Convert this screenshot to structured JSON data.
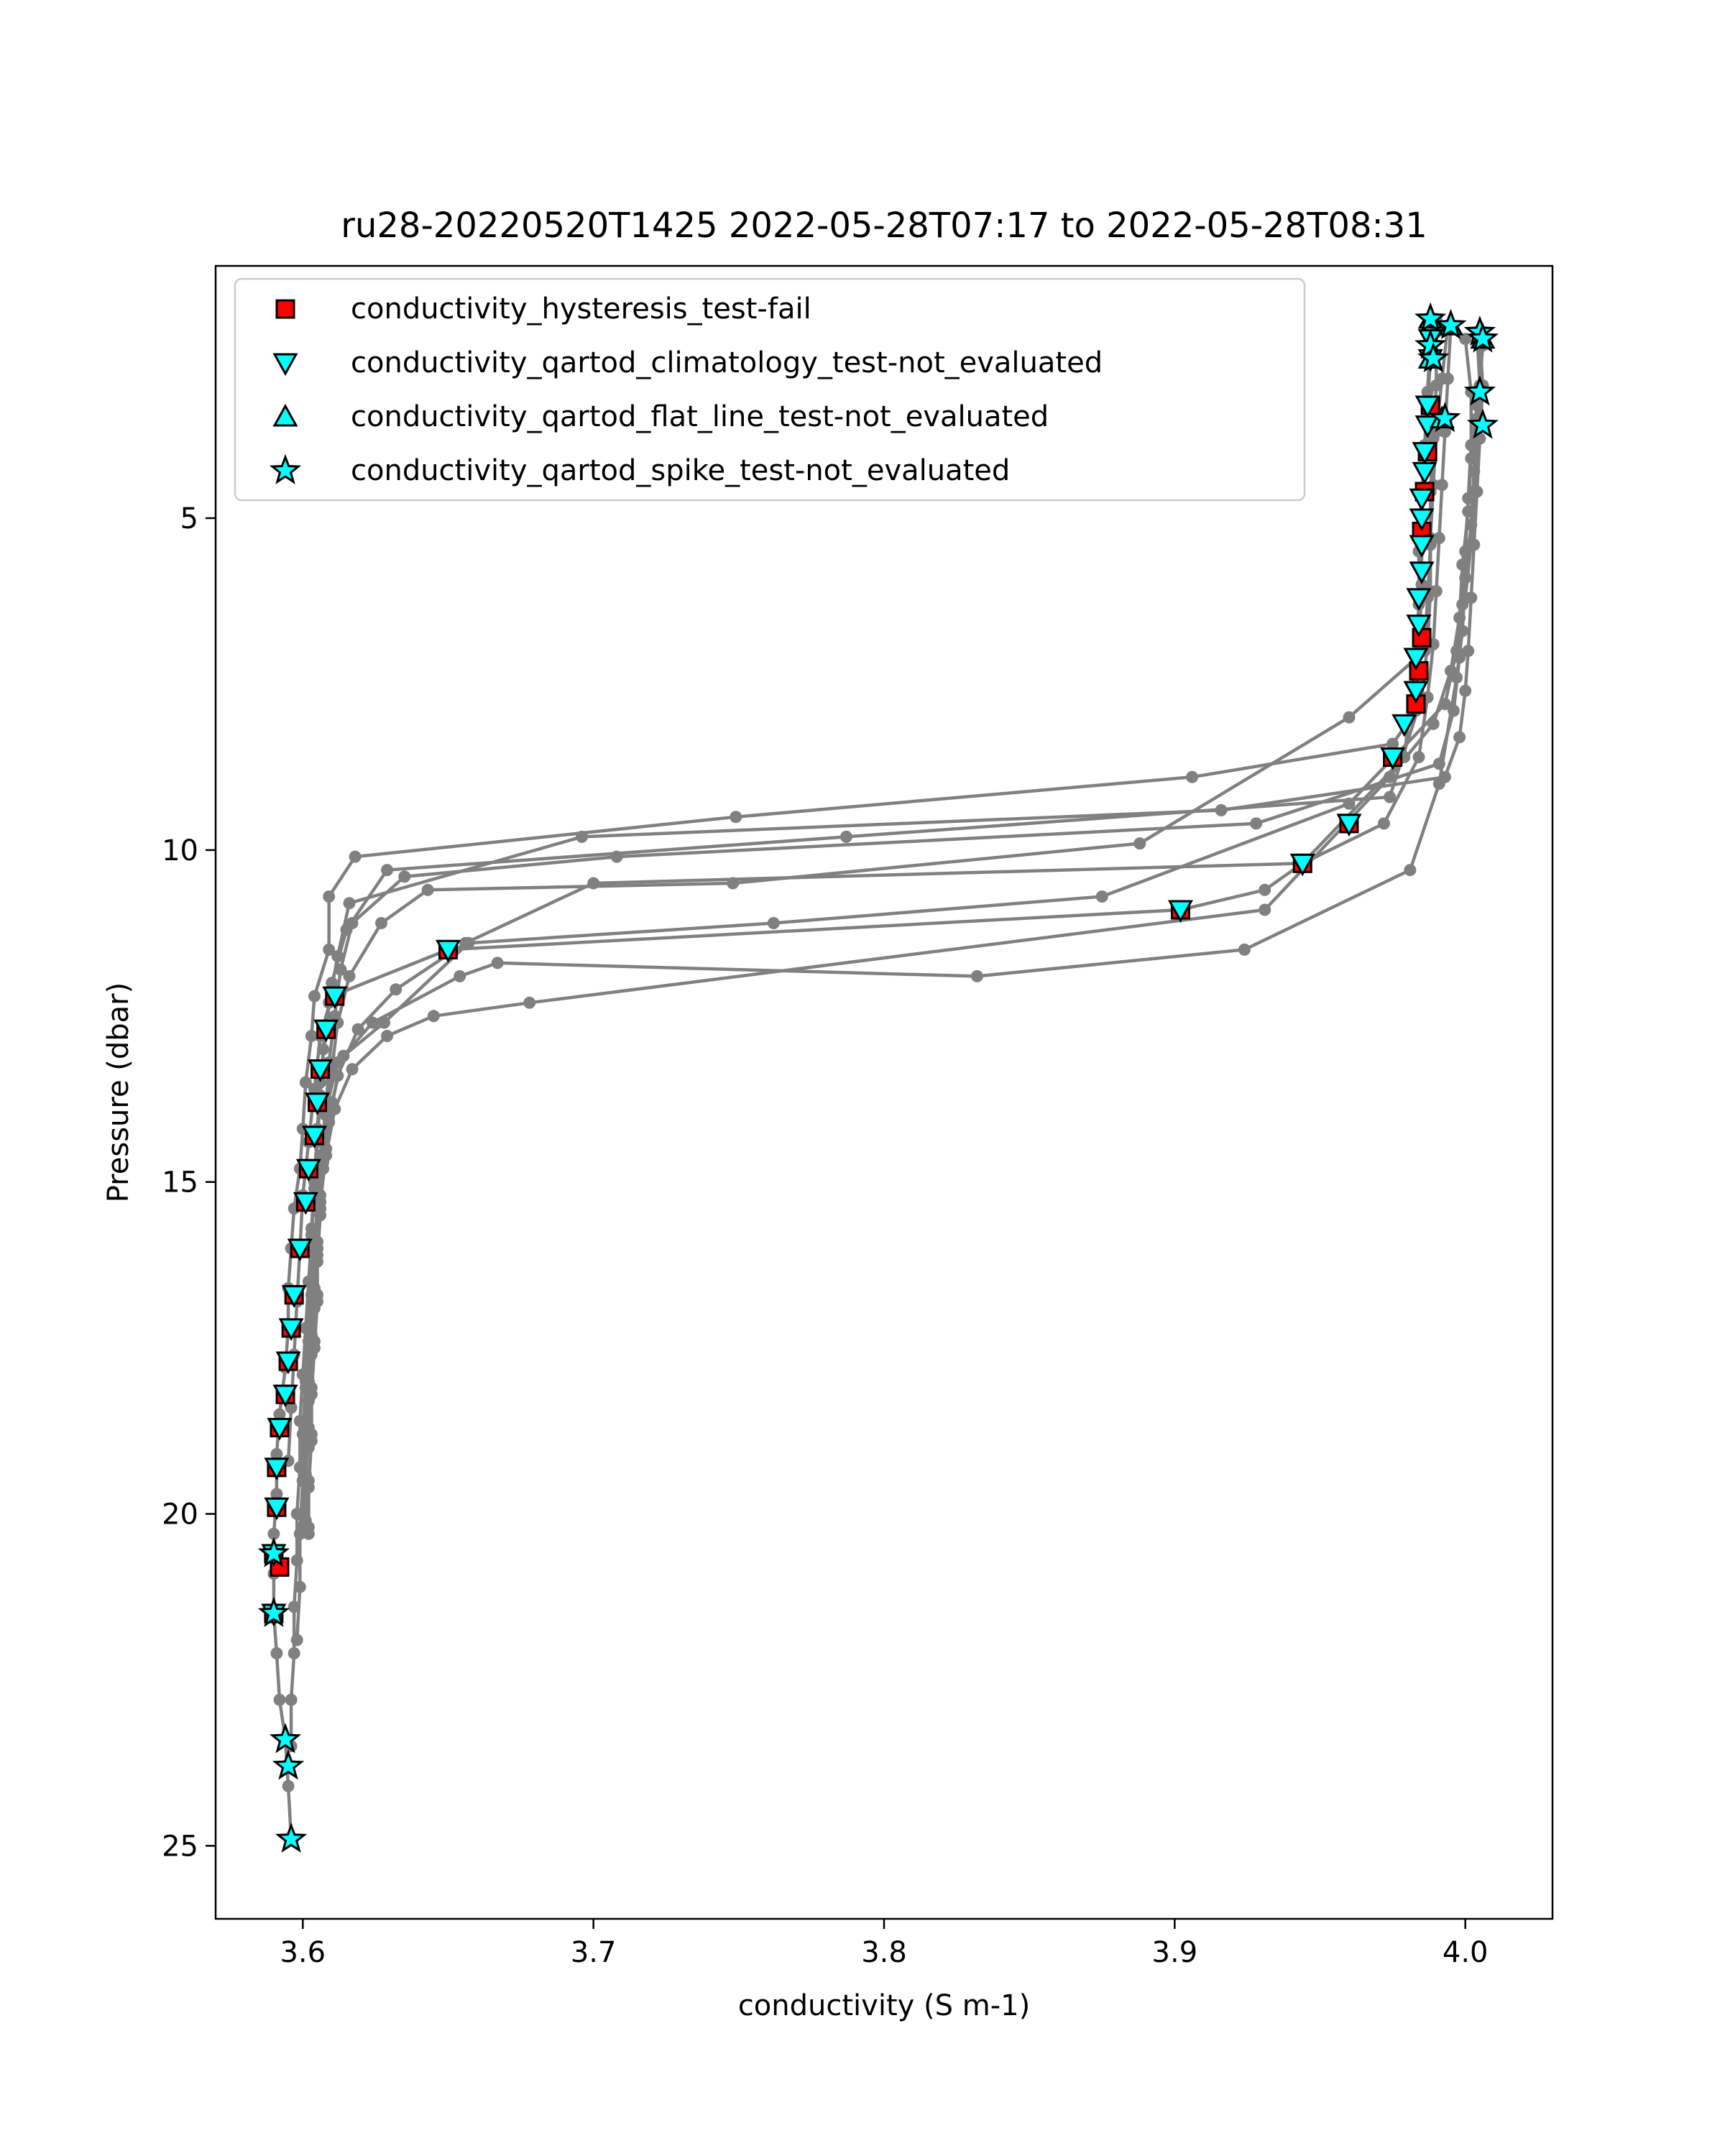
{
  "chart_data": {
    "type": "line",
    "title": "ru28-20220520T1425 2022-05-28T07:17 to 2022-05-28T08:31",
    "xlabel": "conductivity (S m-1)",
    "ylabel": "Pressure (dbar)",
    "xlim": [
      3.57,
      4.03
    ],
    "ylim": [
      26.1,
      1.2
    ],
    "y_inverted": true,
    "grid": false,
    "legend_position": "upper-left",
    "x_ticks": [
      3.6,
      3.7,
      3.8,
      3.9,
      4.0
    ],
    "x_tick_labels": [
      "3.6",
      "3.7",
      "3.8",
      "3.9",
      "4.0"
    ],
    "y_ticks": [
      5,
      10,
      15,
      20,
      25
    ],
    "y_tick_labels": [
      "5",
      "10",
      "15",
      "20",
      "25"
    ],
    "line_color": "#808080",
    "profiles": [
      {
        "x": [
          3.99,
          3.988,
          3.987,
          3.986,
          3.985,
          3.985,
          3.984,
          3.983,
          3.975,
          3.906,
          3.749,
          3.618,
          3.609,
          3.609,
          3.604,
          3.603,
          3.601,
          3.6,
          3.599,
          3.597,
          3.596,
          3.595,
          3.595,
          3.594,
          3.592,
          3.591,
          3.591,
          3.59,
          3.59,
          3.59,
          3.591,
          3.592,
          3.594,
          3.595,
          3.596
        ],
        "y": [
          2.0,
          2.6,
          3.3,
          4.0,
          5.0,
          6.0,
          7.0,
          7.9,
          8.4,
          8.9,
          9.5,
          10.1,
          10.7,
          11.5,
          12.2,
          12.8,
          13.5,
          14.2,
          14.8,
          15.4,
          16.0,
          16.6,
          17.2,
          17.8,
          18.5,
          19.1,
          19.7,
          20.3,
          20.9,
          21.5,
          22.1,
          22.8,
          23.4,
          24.1,
          24.9
        ]
      },
      {
        "x": [
          4.005,
          4.006,
          4.005,
          4.004,
          4.003,
          4.002,
          4.001,
          4.0,
          3.998,
          3.993,
          3.916,
          3.696,
          3.616,
          3.612,
          3.609,
          3.607,
          3.606,
          3.605,
          3.604,
          3.603,
          3.602,
          3.601,
          3.6,
          3.599,
          3.599,
          3.598,
          3.598,
          3.597,
          3.597,
          3.596,
          3.596
        ],
        "y": [
          2.3,
          3.0,
          3.8,
          4.6,
          5.4,
          6.2,
          7.0,
          7.6,
          8.3,
          8.9,
          9.4,
          9.8,
          10.8,
          11.6,
          12.3,
          13.0,
          13.7,
          14.4,
          15.1,
          15.8,
          16.5,
          17.2,
          17.9,
          18.6,
          19.3,
          20.0,
          20.7,
          21.4,
          22.1,
          22.8,
          23.5
        ]
      },
      {
        "x": [
          3.994,
          3.992,
          3.99,
          3.989,
          3.988,
          3.988,
          3.987,
          3.985,
          3.974,
          3.787,
          3.629,
          3.615,
          3.61,
          3.608,
          3.606,
          3.605,
          3.604,
          3.603,
          3.603,
          3.602,
          3.601,
          3.6,
          3.6,
          3.599,
          3.599,
          3.598
        ],
        "y": [
          2.1,
          2.9,
          3.7,
          4.5,
          5.3,
          6.1,
          6.9,
          7.7,
          9.2,
          9.8,
          10.3,
          11.2,
          12.0,
          12.7,
          13.5,
          14.2,
          15.0,
          15.7,
          16.5,
          17.2,
          18.0,
          18.8,
          19.5,
          20.3,
          21.1,
          21.9
        ]
      },
      {
        "x": [
          4.0,
          4.002,
          4.002,
          4.001,
          4.0,
          3.999,
          3.998,
          3.996,
          3.991,
          3.928,
          3.708,
          3.635,
          3.617,
          3.613,
          3.611,
          3.609,
          3.608,
          3.607,
          3.606,
          3.605,
          3.605,
          3.604,
          3.603,
          3.603,
          3.602,
          3.602
        ],
        "y": [
          2.3,
          3.1,
          3.9,
          4.7,
          5.5,
          6.3,
          7.1,
          7.9,
          8.7,
          9.6,
          10.1,
          10.4,
          11.1,
          11.8,
          12.5,
          13.2,
          13.9,
          14.6,
          15.3,
          16.0,
          16.7,
          17.4,
          18.1,
          18.8,
          19.5,
          20.2
        ]
      },
      {
        "x": [
          3.99,
          3.99,
          3.989,
          3.988,
          3.988,
          3.987,
          3.986,
          3.96,
          3.888,
          3.748,
          3.643,
          3.627,
          3.616,
          3.612,
          3.61,
          3.608,
          3.607,
          3.606,
          3.605,
          3.605,
          3.604,
          3.603,
          3.603,
          3.602,
          3.602
        ],
        "y": [
          2.2,
          3.0,
          3.8,
          4.6,
          5.4,
          6.2,
          7.0,
          8.0,
          9.9,
          10.5,
          10.6,
          11.1,
          11.9,
          12.6,
          13.3,
          14.0,
          14.7,
          15.4,
          16.1,
          16.8,
          17.5,
          18.2,
          18.9,
          19.6,
          20.3
        ]
      },
      {
        "x": [
          4.004,
          4.005,
          4.004,
          4.003,
          4.002,
          4.0,
          3.997,
          3.993,
          3.96,
          3.875,
          3.762,
          3.657,
          3.628,
          3.614,
          3.61,
          3.608,
          3.606,
          3.605,
          3.604,
          3.603,
          3.602,
          3.602,
          3.601,
          3.601
        ],
        "y": [
          2.2,
          3.0,
          3.8,
          4.6,
          5.4,
          6.2,
          7.0,
          7.8,
          9.3,
          10.7,
          11.1,
          11.4,
          12.6,
          13.1,
          13.8,
          14.5,
          15.2,
          15.9,
          16.6,
          17.3,
          18.0,
          18.7,
          19.4,
          20.1
        ]
      },
      {
        "x": [
          3.988,
          3.987,
          3.986,
          3.985,
          3.984,
          3.984,
          3.983,
          3.979,
          3.944,
          3.931,
          3.902,
          3.65,
          3.61,
          3.606,
          3.604,
          3.602,
          3.6,
          3.599,
          3.598,
          3.597,
          3.596,
          3.595
        ],
        "y": [
          2.3,
          3.1,
          3.9,
          4.7,
          5.5,
          6.3,
          7.1,
          8.6,
          10.2,
          10.6,
          10.9,
          11.5,
          12.2,
          12.8,
          13.6,
          14.4,
          15.2,
          16.0,
          16.8,
          17.6,
          18.4,
          19.2
        ]
      },
      {
        "x": [
          4.006,
          4.004,
          4.003,
          4.002,
          4.0,
          3.999,
          3.997,
          3.991,
          3.981,
          3.924,
          3.832,
          3.667,
          3.654,
          3.624,
          3.612,
          3.608,
          3.606,
          3.605,
          3.604,
          3.603,
          3.602,
          3.601,
          3.601,
          3.6,
          3.6
        ],
        "y": [
          2.4,
          3.5,
          4.3,
          5.1,
          5.9,
          6.7,
          7.4,
          9.0,
          10.3,
          11.5,
          11.9,
          11.7,
          11.9,
          12.6,
          13.2,
          13.9,
          14.6,
          15.3,
          16.0,
          16.7,
          17.4,
          18.1,
          18.8,
          19.5,
          20.2
        ]
      },
      {
        "x": [
          3.995,
          3.994,
          3.993,
          3.992,
          3.991,
          3.99,
          3.989,
          3.987,
          3.984,
          3.972,
          3.944,
          3.7,
          3.656,
          3.632,
          3.619,
          3.612,
          3.609,
          3.607,
          3.606,
          3.605,
          3.604,
          3.603,
          3.602,
          3.602
        ],
        "y": [
          2.1,
          2.9,
          3.7,
          4.5,
          5.3,
          6.1,
          6.9,
          7.7,
          8.6,
          9.6,
          10.2,
          10.5,
          11.4,
          12.1,
          12.7,
          13.4,
          14.1,
          14.8,
          15.5,
          16.2,
          16.9,
          17.6,
          18.3,
          19.0
        ]
      },
      {
        "x": [
          4.006,
          4.004,
          4.002,
          4.001,
          3.999,
          3.998,
          3.995,
          3.989,
          3.974,
          3.931,
          3.678,
          3.645,
          3.629,
          3.617,
          3.611,
          3.608,
          3.606,
          3.605,
          3.604,
          3.603,
          3.602,
          3.601,
          3.601
        ],
        "y": [
          2.4,
          3.3,
          4.1,
          4.9,
          5.7,
          6.5,
          7.3,
          8.1,
          8.9,
          10.9,
          12.3,
          12.5,
          12.8,
          13.3,
          13.9,
          14.6,
          15.3,
          16.0,
          16.7,
          17.4,
          18.1,
          18.8,
          19.5
        ]
      }
    ],
    "series": [
      {
        "name": "conductivity_hysteresis_test-fail",
        "marker": "square",
        "color": "#ff0000",
        "x": [
          3.985,
          3.984,
          3.983,
          3.975,
          3.96,
          3.944,
          3.902,
          3.65,
          3.611,
          3.608,
          3.606,
          3.605,
          3.604,
          3.602,
          3.601,
          3.599,
          3.597,
          3.596,
          3.595,
          3.594,
          3.592,
          3.591,
          3.591,
          3.59,
          3.59,
          3.592,
          3.988,
          3.987,
          3.986,
          3.985
        ],
        "y": [
          6.8,
          7.3,
          7.8,
          8.6,
          9.6,
          10.2,
          10.9,
          11.5,
          12.2,
          12.7,
          13.3,
          13.8,
          14.3,
          14.8,
          15.3,
          16.0,
          16.7,
          17.2,
          17.7,
          18.2,
          18.7,
          19.3,
          19.9,
          20.6,
          21.5,
          20.8,
          3.3,
          4.0,
          4.6,
          5.2
        ]
      },
      {
        "name": "conductivity_qartod_climatology_test-not_evaluated",
        "marker": "triangle-down",
        "color": "#00ffff",
        "x": [
          3.988,
          3.988,
          3.987,
          3.987,
          3.986,
          3.986,
          3.985,
          3.985,
          3.985,
          3.985,
          3.984,
          3.984,
          3.983,
          3.983,
          3.979,
          3.975,
          3.96,
          3.944,
          3.902,
          3.65,
          3.611,
          3.608,
          3.606,
          3.605,
          3.604,
          3.602,
          3.601,
          3.599,
          3.597,
          3.596,
          3.595,
          3.594,
          3.592,
          3.591,
          3.591,
          3.59,
          3.59
        ],
        "y": [
          2.3,
          2.6,
          3.3,
          3.6,
          4.0,
          4.3,
          4.7,
          5.0,
          5.4,
          5.8,
          6.2,
          6.6,
          7.1,
          7.6,
          8.1,
          8.6,
          9.6,
          10.2,
          10.9,
          11.5,
          12.2,
          12.7,
          13.3,
          13.8,
          14.3,
          14.8,
          15.3,
          16.0,
          16.7,
          17.2,
          17.7,
          18.2,
          18.7,
          19.3,
          19.9,
          20.6,
          21.5
        ]
      },
      {
        "name": "conductivity_qartod_flat_line_test-not_evaluated",
        "marker": "triangle-up",
        "color": "#00ffff",
        "x": [
          3.988,
          3.995,
          4.006,
          3.988,
          3.992
        ],
        "y": [
          2.0,
          2.1,
          2.3,
          2.6,
          3.5
        ]
      },
      {
        "name": "conductivity_qartod_spike_test-not_evaluated",
        "marker": "star",
        "color": "#00ffff",
        "x": [
          3.988,
          3.995,
          4.005,
          4.006,
          3.988,
          3.989,
          4.005,
          3.993,
          4.006,
          3.59,
          3.59,
          3.594,
          3.595,
          3.596
        ],
        "y": [
          2.0,
          2.1,
          2.2,
          2.3,
          2.4,
          2.6,
          3.1,
          3.5,
          3.6,
          20.6,
          21.5,
          23.4,
          23.8,
          24.9
        ]
      }
    ]
  }
}
